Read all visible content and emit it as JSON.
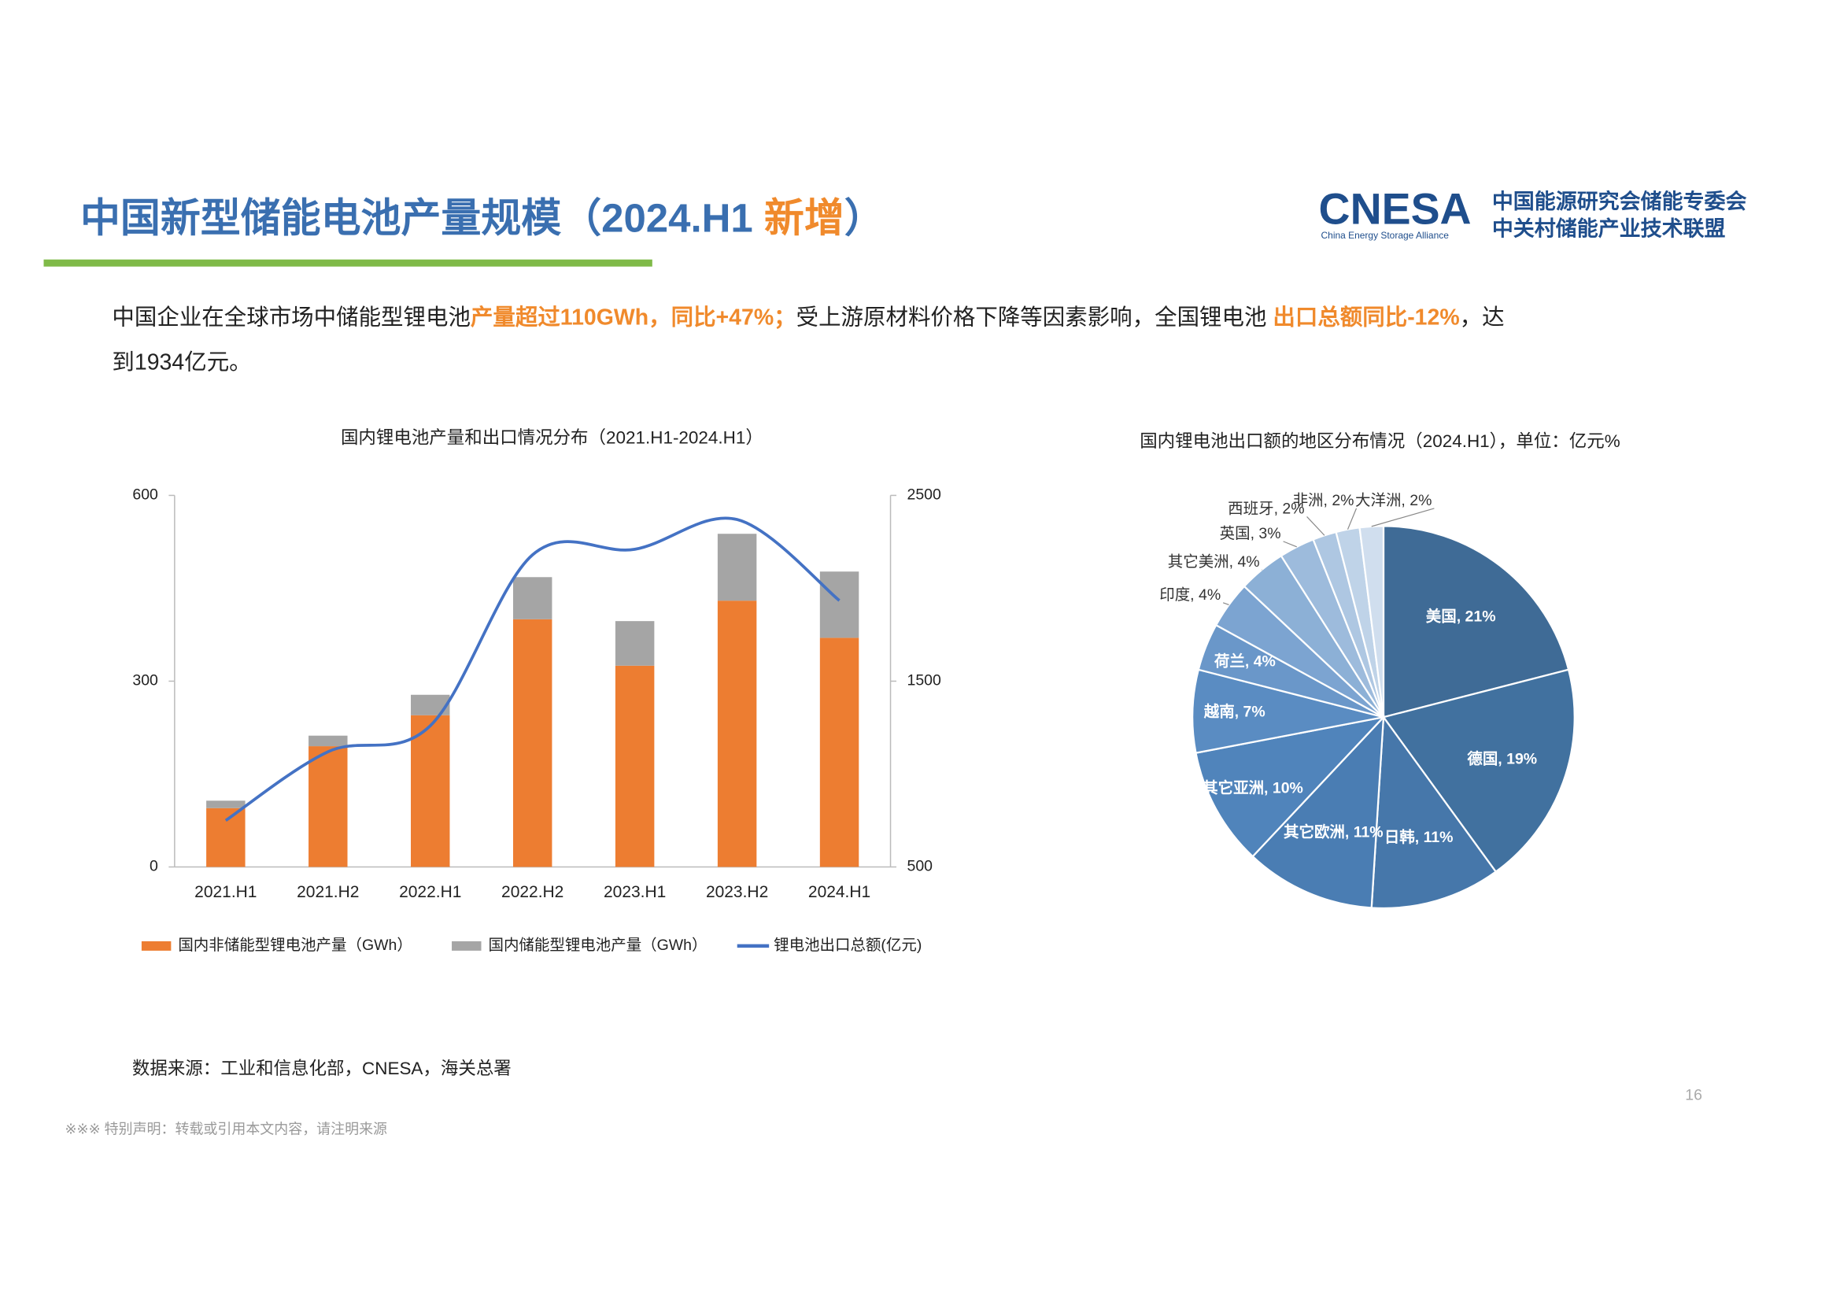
{
  "header": {
    "title_parts": [
      {
        "text": "中国新型储能电池产量规模（2024.H1 ",
        "highlight": false
      },
      {
        "text": "新增",
        "highlight": true
      },
      {
        "text": "）",
        "highlight": false
      }
    ],
    "logo": "CNESA",
    "logo_sub": "China Energy Storage Alliance",
    "org_line1": "中国能源研究会储能专委会",
    "org_line2": "中关村储能产业技术联盟"
  },
  "summary": {
    "lines": [
      [
        {
          "text": "中国企业在全球市场中储能型锂电池",
          "highlight": false
        },
        {
          "text": "产量超过110GWh，同比+47%；",
          "highlight": true
        },
        {
          "text": "受上游原材料价格下降等因素影响，全国锂电池 ",
          "highlight": false
        },
        {
          "text": "出口总额同比-12%",
          "highlight": true
        },
        {
          "text": "，达",
          "highlight": false
        }
      ],
      [
        {
          "text": "到1934亿元。",
          "highlight": false
        }
      ]
    ]
  },
  "chart_data": [
    {
      "type": "bar",
      "title": "国内锂电池产量和出口情况分布（2021.H1-2024.H1）",
      "categories": [
        "2021.H1",
        "2021.H2",
        "2022.H1",
        "2022.H2",
        "2023.H1",
        "2023.H2",
        "2024.H1"
      ],
      "series": [
        {
          "name": "国内非储能型锂电池产量（GWh）",
          "color": "#ed7d31",
          "values": [
            95,
            195,
            245,
            400,
            325,
            430,
            370
          ]
        },
        {
          "name": "国内储能型锂电池产量（GWh）",
          "color": "#a5a5a5",
          "values": [
            12,
            17,
            33,
            68,
            72,
            108,
            107
          ]
        },
        {
          "name": "锂电池出口总额(亿元)",
          "color": "#4472c4",
          "axis": "y2",
          "values": [
            750,
            1120,
            1260,
            2180,
            2210,
            2370,
            1934
          ]
        }
      ],
      "ylim": [
        0,
        600
      ],
      "yticks": [
        0,
        300,
        600
      ],
      "y2lim": [
        500,
        2500
      ],
      "y2ticks": [
        500,
        1500,
        2500
      ],
      "grid": false,
      "legend": "bottom"
    },
    {
      "type": "pie",
      "title": "国内锂电池出口额的地区分布情况（2024.H1），单位：亿元%",
      "values": [
        21,
        19,
        11,
        11,
        10,
        7,
        4,
        4,
        4,
        3,
        2,
        2,
        2
      ],
      "value_labels": [
        "美国, 21%",
        "德国, 19%",
        "日韩, 11%",
        "其它欧洲, 11%",
        "其它亚洲, 10%",
        "越南, 7%",
        "荷兰, 4%",
        "印度, 4%",
        "其它美洲, 4%",
        "英国, 3%",
        "西班牙, 2%",
        "非洲, 2%",
        "大洋洲, 2%"
      ],
      "colors": [
        "#3f6b96",
        "#41719f",
        "#4677aa",
        "#4a7db3",
        "#5084bb",
        "#5a8cc2",
        "#6a97c9",
        "#7ca4d1",
        "#8cb0d6",
        "#9dbbdc",
        "#aec7e2",
        "#bfd3e8",
        "#d0deee"
      ]
    }
  ],
  "source": "数据来源：工业和信息化部，CNESA，海关总署",
  "page_number": "16",
  "disclaimer": "※※※ 特别声明：转载或引用本文内容，请注明来源"
}
